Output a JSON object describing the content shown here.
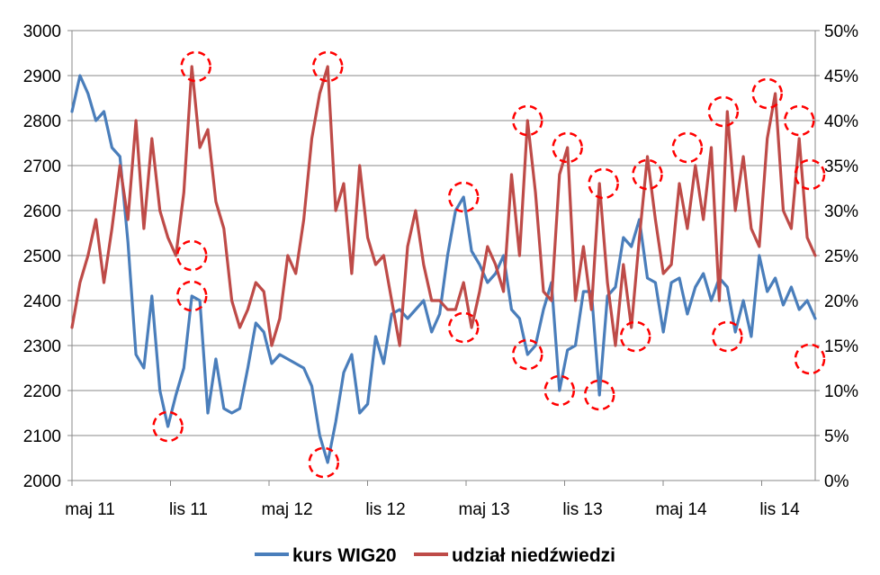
{
  "chart_data": {
    "type": "line",
    "x_tick_labels": [
      "maj 11",
      "lis 11",
      "maj 12",
      "lis 12",
      "maj 13",
      "lis 13",
      "maj 14",
      "lis 14"
    ],
    "y_left": {
      "ticks": [
        "2000",
        "2100",
        "2200",
        "2300",
        "2400",
        "2500",
        "2600",
        "2700",
        "2800",
        "2900",
        "3000"
      ],
      "ylim": [
        2000,
        3000
      ]
    },
    "y_right": {
      "ticks": [
        "0%",
        "5%",
        "10%",
        "15%",
        "20%",
        "25%",
        "30%",
        "35%",
        "40%",
        "45%",
        "50%"
      ],
      "ylim": [
        0,
        50
      ]
    },
    "x_range": [
      0,
      186
    ],
    "grid": "horizontal",
    "legend_position": "bottom",
    "series": [
      {
        "name": "kurs WIG20",
        "axis": "left",
        "color": "#4a7ebb",
        "x": [
          0,
          2,
          4,
          6,
          8,
          10,
          12,
          14,
          16,
          18,
          20,
          22,
          24,
          26,
          28,
          30,
          32,
          34,
          36,
          38,
          40,
          42,
          44,
          46,
          48,
          50,
          52,
          54,
          56,
          58,
          60,
          62,
          64,
          66,
          68,
          70,
          72,
          74,
          76,
          78,
          80,
          82,
          84,
          86,
          88,
          90,
          92,
          94,
          96,
          98,
          100,
          102,
          104,
          106,
          108,
          110,
          112,
          114,
          116,
          118,
          120,
          122,
          124,
          126,
          128,
          130,
          132,
          134,
          136,
          138,
          140,
          142,
          144,
          146,
          148,
          150,
          152,
          154,
          156,
          158,
          160,
          162,
          164,
          166,
          168,
          170,
          172,
          174,
          176,
          178,
          180,
          182,
          184,
          186
        ],
        "y": [
          2820,
          2900,
          2860,
          2800,
          2820,
          2740,
          2720,
          2530,
          2280,
          2250,
          2410,
          2200,
          2120,
          2190,
          2250,
          2410,
          2400,
          2150,
          2270,
          2160,
          2150,
          2160,
          2250,
          2350,
          2330,
          2260,
          2280,
          2270,
          2260,
          2250,
          2210,
          2100,
          2040,
          2130,
          2240,
          2280,
          2150,
          2170,
          2320,
          2260,
          2370,
          2380,
          2360,
          2380,
          2400,
          2330,
          2370,
          2500,
          2600,
          2630,
          2510,
          2480,
          2440,
          2460,
          2500,
          2380,
          2360,
          2280,
          2300,
          2380,
          2440,
          2200,
          2290,
          2300,
          2420,
          2420,
          2190,
          2410,
          2430,
          2540,
          2520,
          2580,
          2450,
          2440,
          2330,
          2440,
          2450,
          2370,
          2430,
          2460,
          2400,
          2450,
          2430,
          2330,
          2400,
          2320,
          2500,
          2420,
          2450,
          2390,
          2430,
          2380,
          2400,
          2360
        ]
      },
      {
        "name": "udział niedźwiedzi",
        "axis": "right",
        "color": "#be4b48",
        "x": [
          0,
          2,
          4,
          6,
          8,
          10,
          12,
          14,
          16,
          18,
          20,
          22,
          24,
          26,
          28,
          30,
          32,
          34,
          36,
          38,
          40,
          42,
          44,
          46,
          48,
          50,
          52,
          54,
          56,
          58,
          60,
          62,
          64,
          66,
          68,
          70,
          72,
          74,
          76,
          78,
          80,
          82,
          84,
          86,
          88,
          90,
          92,
          94,
          96,
          98,
          100,
          102,
          104,
          106,
          108,
          110,
          112,
          114,
          116,
          118,
          120,
          122,
          124,
          126,
          128,
          130,
          132,
          134,
          136,
          138,
          140,
          142,
          144,
          146,
          148,
          150,
          152,
          154,
          156,
          158,
          160,
          162,
          164,
          166,
          168,
          170,
          172,
          174,
          176,
          178,
          180,
          182,
          184,
          186
        ],
        "y": [
          17,
          22,
          25,
          29,
          22,
          28,
          35,
          29,
          40,
          28,
          38,
          30,
          27,
          25,
          32,
          46,
          37,
          39,
          31,
          28,
          20,
          17,
          19,
          22,
          21,
          15,
          18,
          25,
          23,
          29,
          38,
          43,
          46,
          30,
          33,
          23,
          35,
          27,
          24,
          25,
          20,
          15,
          26,
          30,
          24,
          20,
          20,
          19,
          19,
          22,
          17,
          21,
          26,
          24,
          21,
          34,
          25,
          40,
          32,
          21,
          20,
          34,
          37,
          20,
          26,
          19,
          33,
          22,
          15,
          24,
          17,
          27,
          36,
          29,
          23,
          24,
          33,
          28,
          35,
          29,
          37,
          20,
          41,
          30,
          36,
          28,
          26,
          38,
          43,
          30,
          28,
          38,
          27,
          25
        ]
      }
    ]
  },
  "circle_markers": {
    "color": "#ff0000",
    "points": [
      {
        "series": 0,
        "x": 24,
        "y": 2120
      },
      {
        "series": 0,
        "x": 30,
        "y": 2410
      },
      {
        "series": 1,
        "x": 31,
        "y": 46
      },
      {
        "series": 1,
        "x": 30,
        "y": 25
      },
      {
        "series": 0,
        "x": 63,
        "y": 2040
      },
      {
        "series": 1,
        "x": 64,
        "y": 46
      },
      {
        "series": 0,
        "x": 98,
        "y": 2630
      },
      {
        "series": 1,
        "x": 98,
        "y": 17
      },
      {
        "series": 1,
        "x": 114,
        "y": 40
      },
      {
        "series": 0,
        "x": 114,
        "y": 2280
      },
      {
        "series": 0,
        "x": 122,
        "y": 2200
      },
      {
        "series": 1,
        "x": 124,
        "y": 37
      },
      {
        "series": 0,
        "x": 132,
        "y": 2190
      },
      {
        "series": 1,
        "x": 133,
        "y": 33
      },
      {
        "series": 1,
        "x": 144,
        "y": 34
      },
      {
        "series": 1,
        "x": 141,
        "y": 16
      },
      {
        "series": 1,
        "x": 154,
        "y": 37
      },
      {
        "series": 1,
        "x": 163,
        "y": 41
      },
      {
        "series": 0,
        "x": 164,
        "y": 2320
      },
      {
        "series": 1,
        "x": 174,
        "y": 43
      },
      {
        "series": 1,
        "x": 182,
        "y": 40
      },
      {
        "series": 1,
        "x": 197,
        "y": 34
      },
      {
        "series": 0,
        "x": 196,
        "y": 2270
      }
    ]
  }
}
